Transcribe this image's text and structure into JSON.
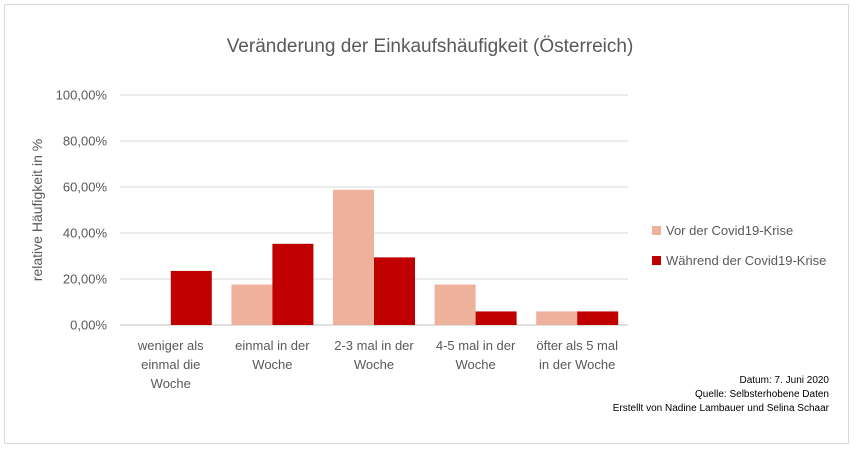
{
  "chart_data": {
    "type": "bar",
    "title": "Veränderung der Einkaufshäufigkeit (Österreich)",
    "ylabel": "relative Häufigkeit in %",
    "xlabel": "",
    "ylim": [
      0,
      100
    ],
    "yticks": [
      "0,00%",
      "20,00%",
      "40,00%",
      "60,00%",
      "80,00%",
      "100,00%"
    ],
    "grid": true,
    "legend_position": "right",
    "categories": [
      [
        "weniger als",
        "einmal die",
        "Woche"
      ],
      [
        "einmal in der",
        "Woche"
      ],
      [
        "2-3 mal in der",
        "Woche"
      ],
      [
        "4-5 mal in der",
        "Woche"
      ],
      [
        "öfter als 5 mal",
        "in der Woche"
      ]
    ],
    "series": [
      {
        "name": "Vor der Covid19-Krise",
        "color": "#eeb19b",
        "values": [
          0,
          17.6,
          58.8,
          17.6,
          5.9
        ]
      },
      {
        "name": "Während der Covid19-Krise",
        "color": "#c00000",
        "values": [
          23.5,
          35.3,
          29.4,
          5.9,
          5.9
        ]
      }
    ],
    "annotations": [
      "Datum: 7. Juni 2020",
      "Quelle: Selbsterhobene Daten",
      "Erstellt von Nadine Lambauer und Selina Schaar"
    ]
  }
}
